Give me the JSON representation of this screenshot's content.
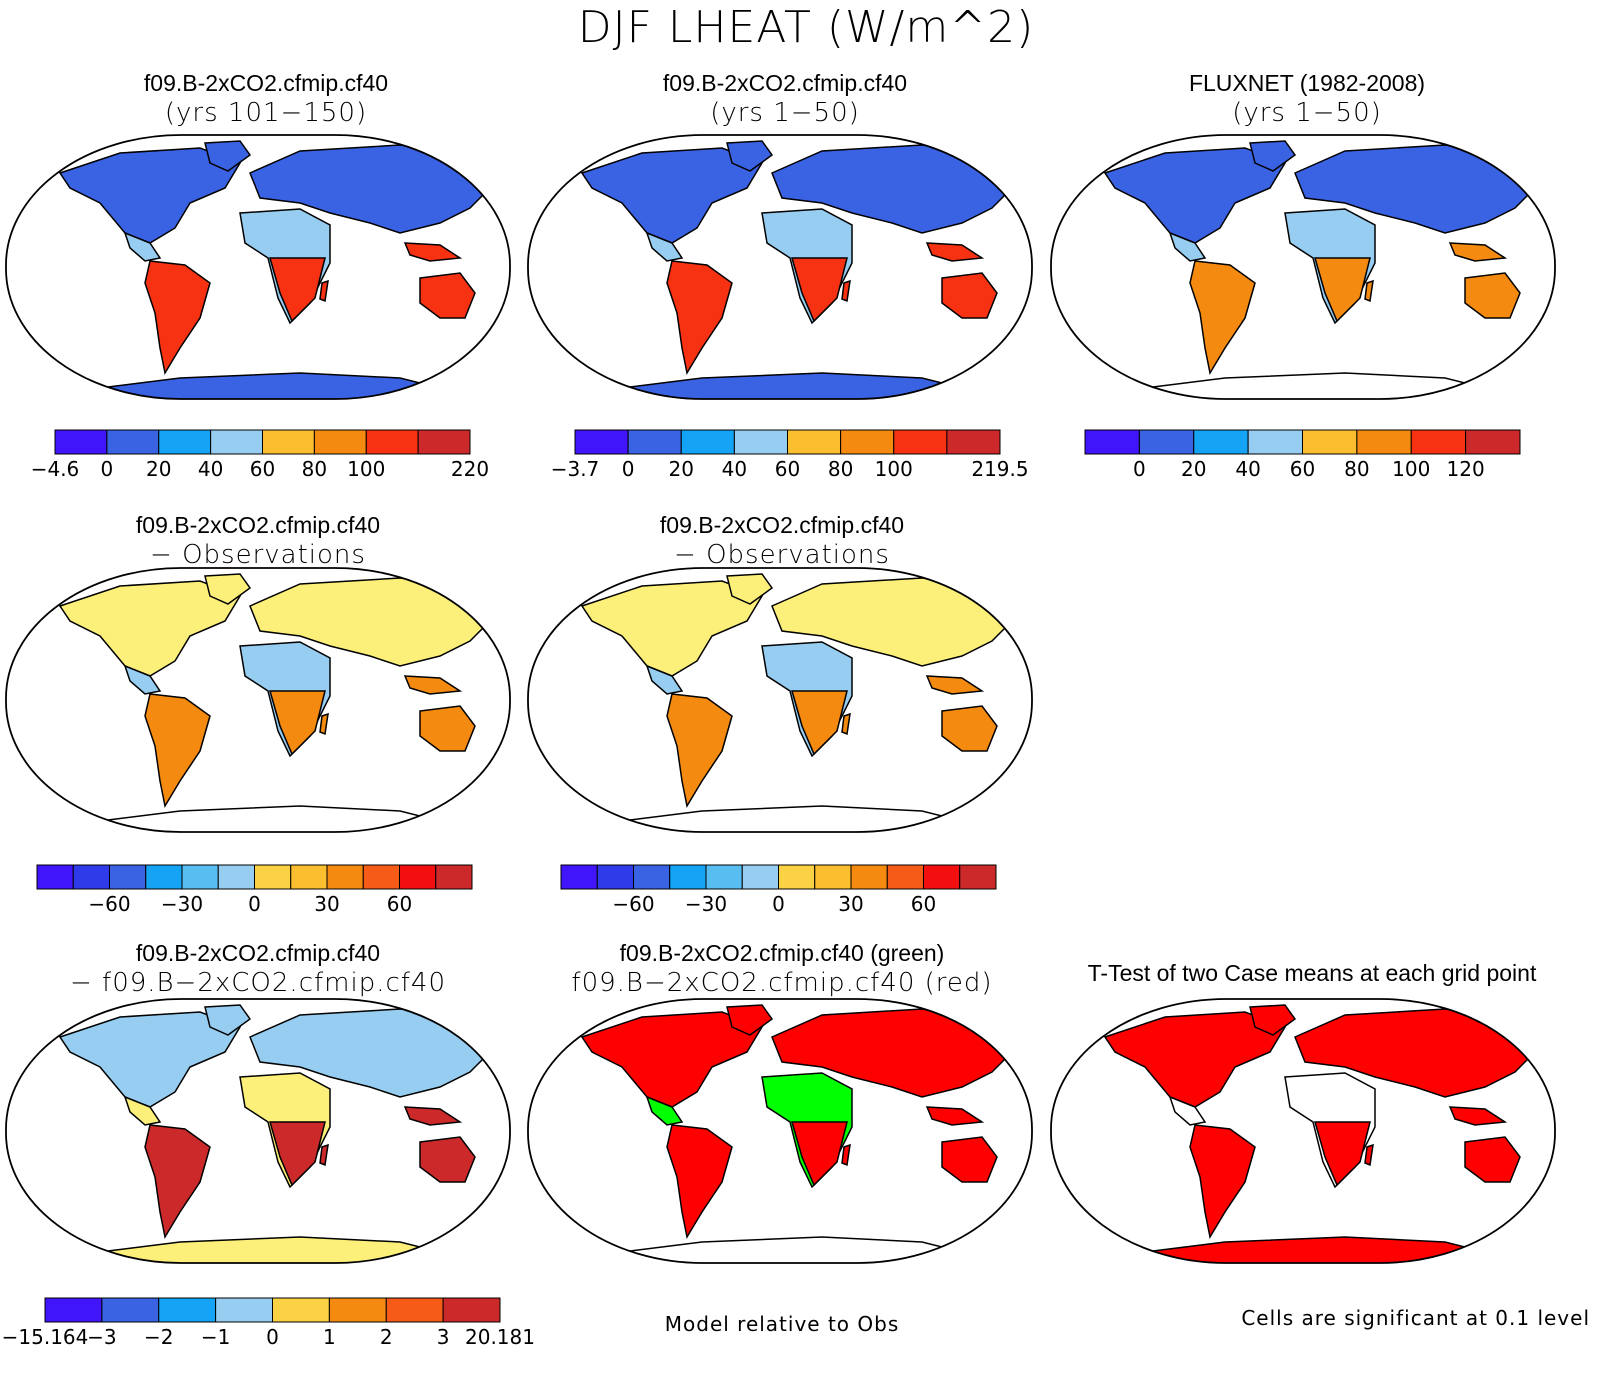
{
  "title": "DJF LHEAT (W/m^2)",
  "colors": {
    "abs": [
      "#4015fa",
      "#3a63e3",
      "#14a3f5",
      "#96cdf0",
      "#fcf07a",
      "#fbbe2e",
      "#f58a10",
      "#f63212",
      "#cc2a2a"
    ],
    "diff": [
      "#4015fa",
      "#2f3be9",
      "#3a63e3",
      "#14a3f5",
      "#58bef2",
      "#96cdf0",
      "#fcf07a",
      "#fbd244",
      "#fbbe2e",
      "#f58a10",
      "#f65b18",
      "#f30f0f",
      "#cc2a2a"
    ],
    "sig": [
      "#ff0000",
      "#00ff00"
    ]
  },
  "panels": [
    {
      "id": "case1",
      "title": "f09.B-2xCO2.cfmip.cf40",
      "subtitle": "(yrs 101−150)",
      "palette": "abs",
      "fill": {
        "cold": "#3a63e3",
        "mid": "#96cdf0",
        "hot": "#f63212",
        "ant": "#3a63e3"
      },
      "colorbar": {
        "labels": [
          "−4.6",
          "0",
          "20",
          "40",
          "60",
          "80",
          "100",
          "220"
        ],
        "boxes": 8,
        "label_at": [
          0,
          1,
          2,
          3,
          4,
          5,
          6,
          8
        ]
      }
    },
    {
      "id": "case2",
      "title": "f09.B-2xCO2.cfmip.cf40",
      "subtitle": "(yrs 1−50)",
      "palette": "abs",
      "fill": {
        "cold": "#3a63e3",
        "mid": "#96cdf0",
        "hot": "#f63212",
        "ant": "#3a63e3"
      },
      "colorbar": {
        "labels": [
          "−3.7",
          "0",
          "20",
          "40",
          "60",
          "80",
          "100",
          "219.5"
        ],
        "boxes": 8,
        "label_at": [
          0,
          1,
          2,
          3,
          4,
          5,
          6,
          8
        ]
      }
    },
    {
      "id": "obs",
      "title": "FLUXNET (1982-2008)",
      "subtitle": "(yrs 1−50)",
      "palette": "abs",
      "fill": {
        "cold": "#3a63e3",
        "mid": "#96cdf0",
        "hot": "#f58a10",
        "ant": "#ffffff"
      },
      "colorbar": {
        "labels": [
          "0",
          "20",
          "40",
          "60",
          "80",
          "100",
          "120"
        ],
        "boxes": 8,
        "label_at": [
          1,
          2,
          3,
          4,
          5,
          6,
          7
        ]
      }
    },
    {
      "id": "diff1",
      "title": "f09.B-2xCO2.cfmip.cf40",
      "subtitle": "− Observations",
      "palette": "diff",
      "fill": {
        "cold": "#fcf07a",
        "mid": "#96cdf0",
        "hot": "#f58a10",
        "ant": "#ffffff"
      },
      "colorbar": {
        "labels": [
          "−60",
          "−30",
          "0",
          "30",
          "60"
        ],
        "boxes": 12,
        "label_at": [
          2,
          4,
          6,
          8,
          10
        ]
      }
    },
    {
      "id": "diff2",
      "title": "f09.B-2xCO2.cfmip.cf40",
      "subtitle": "− Observations",
      "palette": "diff",
      "fill": {
        "cold": "#fcf07a",
        "mid": "#96cdf0",
        "hot": "#f58a10",
        "ant": "#ffffff"
      },
      "colorbar": {
        "labels": [
          "−60",
          "−30",
          "0",
          "30",
          "60"
        ],
        "boxes": 12,
        "label_at": [
          2,
          4,
          6,
          8,
          10
        ]
      }
    },
    {
      "id": "casediff",
      "title": "f09.B-2xCO2.cfmip.cf40",
      "subtitle": "− f09.B−2xCO2.cfmip.cf40",
      "palette": "diff",
      "fill": {
        "cold": "#96cdf0",
        "mid": "#fcf07a",
        "hot": "#cc2a2a",
        "ant": "#fcf07a"
      },
      "colorbar": {
        "labels": [
          "−15.164",
          "−3",
          "−2",
          "−1",
          "0",
          "1",
          "2",
          "3",
          "20.181"
        ],
        "boxes": 8,
        "label_at": [
          0,
          1,
          2,
          3,
          4,
          5,
          6,
          7,
          8
        ]
      }
    },
    {
      "id": "relative",
      "title": "f09.B-2xCO2.cfmip.cf40 (green)",
      "subtitle": "f09.B−2xCO2.cfmip.cf40 (red)",
      "palette": "sig",
      "fill": {
        "cold": "#ff0000",
        "mid": "#00ff00",
        "hot": "#ff0000",
        "ant": "#ffffff"
      },
      "note": "Model relative to Obs"
    },
    {
      "id": "ttest",
      "title": "T-Test of two Case means at each grid point",
      "subtitle": "",
      "palette": "sig",
      "fill": {
        "cold": "#ff0000",
        "mid": "#ffffff",
        "hot": "#ff0000",
        "ant": "#ff0000"
      },
      "note": "Cells are significant at 0.1 level"
    }
  ]
}
